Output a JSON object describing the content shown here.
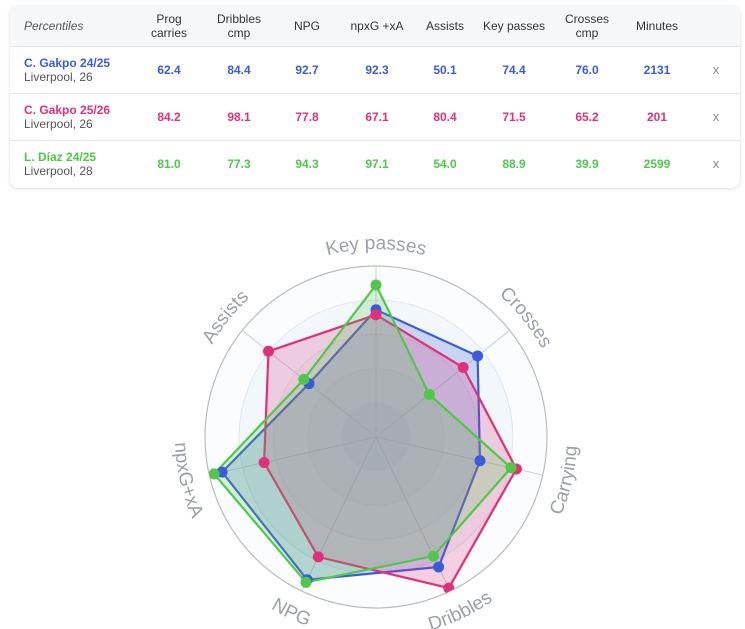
{
  "table": {
    "header_label": "Percentiles",
    "columns": [
      "Prog\ncarries",
      "Dribbles\ncmp",
      "NPG",
      "npxG +xA",
      "Assists",
      "Key passes",
      "Crosses\ncmp",
      "Minutes"
    ],
    "remove_label": "x",
    "rows": [
      {
        "name": "C. Gakpo",
        "season": "24/25",
        "club": "Liverpool, 26",
        "color": "#3b5bdb",
        "values": [
          "62.4",
          "84.4",
          "92.7",
          "92.3",
          "50.1",
          "74.4",
          "76.0",
          "2131"
        ]
      },
      {
        "name": "C. Gakpo",
        "season": "25/26",
        "club": "Liverpool, 26",
        "color": "#e0307a",
        "values": [
          "84.2",
          "98.1",
          "77.8",
          "67.1",
          "80.4",
          "71.5",
          "65.2",
          "201"
        ]
      },
      {
        "name": "L. Díaz",
        "season": "24/25",
        "club": "Liverpool, 28",
        "color": "#4fc84a",
        "values": [
          "81.0",
          "77.3",
          "94.3",
          "97.1",
          "54.0",
          "88.9",
          "39.9",
          "2599"
        ]
      }
    ]
  },
  "chart_data": {
    "type": "radar",
    "axes": [
      "Key passes",
      "Crosses",
      "Carrying",
      "Dribbles",
      "NPG",
      "npxG+xA",
      "Assists"
    ],
    "range": [
      0,
      100
    ],
    "series": [
      {
        "name": "C. Gakpo 24/25",
        "color": "#3b5bdb",
        "values": [
          74.4,
          76.0,
          62.4,
          84.4,
          92.7,
          92.3,
          50.1
        ]
      },
      {
        "name": "C. Gakpo 25/26",
        "color": "#e0307a",
        "values": [
          71.5,
          65.2,
          84.2,
          98.1,
          77.8,
          67.1,
          80.4
        ]
      },
      {
        "name": "L. Díaz 24/25",
        "color": "#4fc84a",
        "values": [
          88.9,
          39.9,
          81.0,
          77.3,
          94.3,
          97.1,
          54.0
        ]
      }
    ]
  }
}
